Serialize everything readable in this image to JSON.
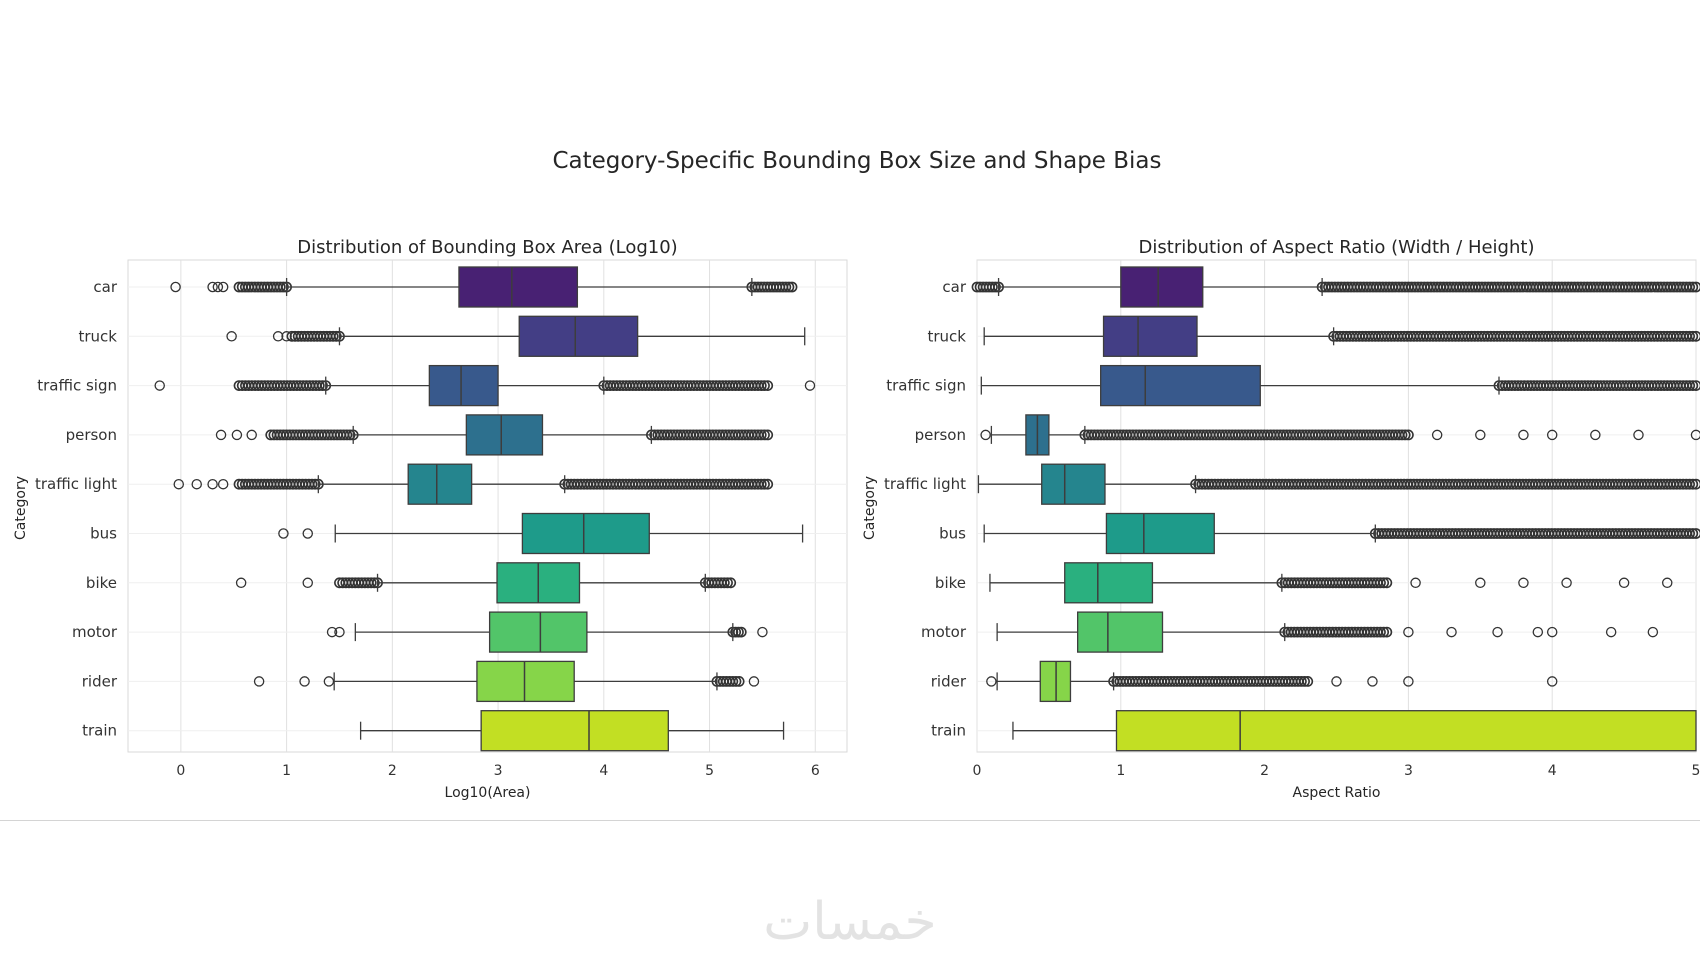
{
  "suptitle": "Category-Specific Bounding Box Size and Shape Bias",
  "watermark": "خمسات",
  "colors": {
    "car": "#482173",
    "truck": "#433e85",
    "traffic sign": "#38598c",
    "person": "#2d708e",
    "traffic light": "#25858e",
    "bus": "#1e9b8a",
    "bike": "#2ab07f",
    "motor": "#52c569",
    "rider": "#86d549",
    "train": "#c2df23",
    "grid": "#e0e0e0",
    "line": "#3d3d3d"
  },
  "chart_data": [
    {
      "type": "box",
      "title": "Distribution of Bounding Box Area (Log10)",
      "xlabel": "Log10(Area)",
      "ylabel": "Category",
      "xlim": [
        -0.5,
        6.3
      ],
      "xticks": [
        0,
        1,
        2,
        3,
        4,
        5,
        6
      ],
      "grid": true,
      "categories": [
        "car",
        "truck",
        "traffic sign",
        "person",
        "traffic light",
        "bus",
        "bike",
        "motor",
        "rider",
        "train"
      ],
      "boxes": [
        {
          "category": "car",
          "whislo": 1.0,
          "q1": 2.63,
          "med": 3.13,
          "q3": 3.75,
          "whishi": 5.4,
          "outliers": [
            -0.05,
            0.3,
            0.35,
            0.4
          ],
          "outlier_bands": [
            [
              0.55,
              1.0
            ],
            [
              5.4,
              5.78
            ]
          ]
        },
        {
          "category": "truck",
          "whislo": 1.5,
          "q1": 3.2,
          "med": 3.73,
          "q3": 4.32,
          "whishi": 5.9,
          "outliers": [
            0.48,
            0.92,
            1.0
          ],
          "outlier_bands": [
            [
              1.05,
              1.5
            ]
          ]
        },
        {
          "category": "traffic sign",
          "whislo": 1.37,
          "q1": 2.35,
          "med": 2.65,
          "q3": 3.0,
          "whishi": 4.0,
          "outliers": [
            -0.2,
            5.95
          ],
          "outlier_bands": [
            [
              0.55,
              1.37
            ],
            [
              4.0,
              5.55
            ]
          ]
        },
        {
          "category": "person",
          "whislo": 1.63,
          "q1": 2.7,
          "med": 3.03,
          "q3": 3.42,
          "whishi": 4.45,
          "outliers": [
            0.38,
            0.53,
            0.67
          ],
          "outlier_bands": [
            [
              0.85,
              1.63
            ],
            [
              4.45,
              5.55
            ]
          ]
        },
        {
          "category": "traffic light",
          "whislo": 1.3,
          "q1": 2.15,
          "med": 2.42,
          "q3": 2.75,
          "whishi": 3.63,
          "outliers": [
            -0.02,
            0.15,
            0.3,
            0.4
          ],
          "outlier_bands": [
            [
              0.55,
              1.3
            ],
            [
              3.63,
              5.55
            ]
          ]
        },
        {
          "category": "bus",
          "whislo": 1.46,
          "q1": 3.23,
          "med": 3.81,
          "q3": 4.43,
          "whishi": 5.88,
          "outliers": [
            0.97,
            1.2
          ],
          "outlier_bands": []
        },
        {
          "category": "bike",
          "whislo": 1.86,
          "q1": 2.99,
          "med": 3.38,
          "q3": 3.77,
          "whishi": 4.96,
          "outliers": [
            0.57,
            1.2
          ],
          "outlier_bands": [
            [
              1.5,
              1.86
            ],
            [
              4.96,
              5.2
            ]
          ]
        },
        {
          "category": "motor",
          "whislo": 1.65,
          "q1": 2.92,
          "med": 3.4,
          "q3": 3.84,
          "whishi": 5.22,
          "outliers": [
            1.43,
            1.5,
            5.5
          ],
          "outlier_bands": [
            [
              5.22,
              5.3
            ]
          ]
        },
        {
          "category": "rider",
          "whislo": 1.45,
          "q1": 2.8,
          "med": 3.25,
          "q3": 3.72,
          "whishi": 5.07,
          "outliers": [
            0.74,
            1.17,
            1.4,
            5.42
          ],
          "outlier_bands": [
            [
              5.07,
              5.28
            ]
          ]
        },
        {
          "category": "train",
          "whislo": 1.7,
          "q1": 2.84,
          "med": 3.86,
          "q3": 4.61,
          "whishi": 5.7,
          "outliers": [],
          "outlier_bands": []
        }
      ]
    },
    {
      "type": "box",
      "title": "Distribution of Aspect Ratio (Width / Height)",
      "xlabel": "Aspect Ratio",
      "ylabel": "Category",
      "xlim": [
        0,
        5
      ],
      "xticks": [
        0,
        1,
        2,
        3,
        4,
        5
      ],
      "grid": true,
      "categories": [
        "car",
        "truck",
        "traffic sign",
        "person",
        "traffic light",
        "bus",
        "bike",
        "motor",
        "rider",
        "train"
      ],
      "boxes": [
        {
          "category": "car",
          "whislo": 0.15,
          "q1": 1.0,
          "med": 1.26,
          "q3": 1.57,
          "whishi": 2.4,
          "outliers": [],
          "outlier_bands": [
            [
              0.0,
              0.15
            ],
            [
              2.4,
              5.0
            ]
          ]
        },
        {
          "category": "truck",
          "whislo": 0.05,
          "q1": 0.88,
          "med": 1.12,
          "q3": 1.53,
          "whishi": 2.48,
          "outliers": [],
          "outlier_bands": [
            [
              2.48,
              5.0
            ]
          ]
        },
        {
          "category": "traffic sign",
          "whislo": 0.03,
          "q1": 0.86,
          "med": 1.17,
          "q3": 1.97,
          "whishi": 3.63,
          "outliers": [],
          "outlier_bands": [
            [
              3.63,
              5.0
            ]
          ]
        },
        {
          "category": "person",
          "whislo": 0.1,
          "q1": 0.34,
          "med": 0.42,
          "q3": 0.5,
          "whishi": 0.75,
          "outliers": [
            0.06,
            3.2,
            3.5,
            3.8,
            4.0,
            4.3,
            4.6,
            5.0
          ],
          "outlier_bands": [
            [
              0.75,
              3.0
            ]
          ]
        },
        {
          "category": "traffic light",
          "whislo": 0.01,
          "q1": 0.45,
          "med": 0.61,
          "q3": 0.89,
          "whishi": 1.52,
          "outliers": [],
          "outlier_bands": [
            [
              1.52,
              5.0
            ]
          ]
        },
        {
          "category": "bus",
          "whislo": 0.05,
          "q1": 0.9,
          "med": 1.16,
          "q3": 1.65,
          "whishi": 2.77,
          "outliers": [],
          "outlier_bands": [
            [
              2.77,
              5.0
            ]
          ]
        },
        {
          "category": "bike",
          "whislo": 0.09,
          "q1": 0.61,
          "med": 0.84,
          "q3": 1.22,
          "whishi": 2.12,
          "outliers": [
            3.05,
            3.5,
            3.8,
            4.1,
            4.5,
            4.8
          ],
          "outlier_bands": [
            [
              2.12,
              2.85
            ]
          ]
        },
        {
          "category": "motor",
          "whislo": 0.14,
          "q1": 0.7,
          "med": 0.91,
          "q3": 1.29,
          "whishi": 2.14,
          "outliers": [
            3.0,
            3.3,
            3.62,
            3.9,
            4.0,
            4.41,
            4.7
          ],
          "outlier_bands": [
            [
              2.14,
              2.85
            ]
          ]
        },
        {
          "category": "rider",
          "whislo": 0.14,
          "q1": 0.44,
          "med": 0.55,
          "q3": 0.65,
          "whishi": 0.95,
          "outliers": [
            0.1,
            2.5,
            2.75,
            3.0,
            4.0
          ],
          "outlier_bands": [
            [
              0.95,
              2.3
            ]
          ]
        },
        {
          "category": "train",
          "whislo": 0.25,
          "q1": 0.97,
          "med": 1.83,
          "q3": 5.0,
          "whishi": 5.0,
          "outliers": [],
          "outlier_bands": []
        }
      ]
    }
  ]
}
